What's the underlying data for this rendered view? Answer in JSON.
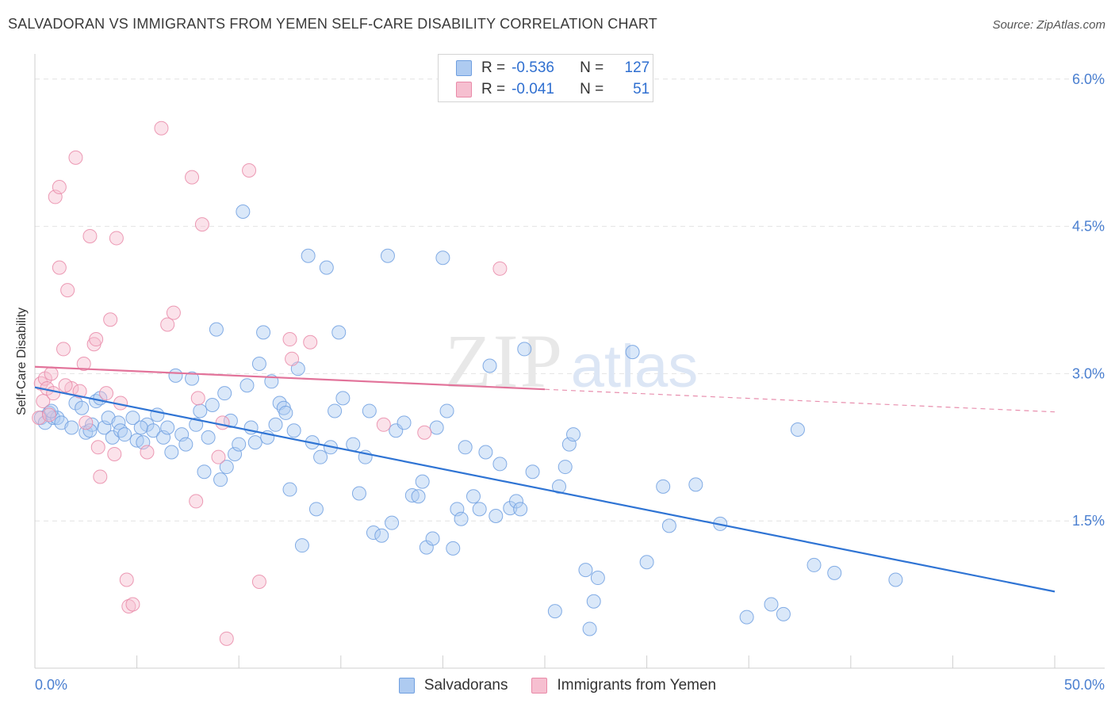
{
  "header": {
    "title": "SALVADORAN VS IMMIGRANTS FROM YEMEN SELF-CARE DISABILITY CORRELATION CHART",
    "source": "Source: ZipAtlas.com"
  },
  "watermark": {
    "zip": "ZIP",
    "atlas": "atlas"
  },
  "legend": {
    "rows": [
      {
        "r_label": "R =",
        "r_value": "-0.536",
        "n_label": "N =",
        "n_value": "127",
        "color": "#aecbf1",
        "border": "#6f9fe0"
      },
      {
        "r_label": "R =",
        "r_value": "-0.041",
        "n_label": "N =",
        "n_value": "51",
        "color": "#f6bfd0",
        "border": "#e98aa8"
      }
    ]
  },
  "chart_data": {
    "type": "scatter",
    "title": "SALVADORAN VS IMMIGRANTS FROM YEMEN SELF-CARE DISABILITY CORRELATION CHART",
    "xlabel": "",
    "ylabel": "Self-Care Disability",
    "xlim": [
      0,
      50
    ],
    "ylim": [
      0,
      6.2
    ],
    "x_tick_labels": [
      "0.0%",
      "50.0%"
    ],
    "y_ticks": [
      1.5,
      3.0,
      4.5,
      6.0
    ],
    "y_tick_labels": [
      "1.5%",
      "3.0%",
      "4.5%",
      "6.0%"
    ],
    "grid": true,
    "legend_position": "top-center",
    "series": [
      {
        "name": "Salvadorans",
        "color": "#6f9fe0",
        "fill": "#aecbf1",
        "trend": {
          "x": [
            0,
            50
          ],
          "y": [
            2.86,
            0.78
          ],
          "dashed_x": []
        },
        "points": [
          [
            0.3,
            2.55
          ],
          [
            0.5,
            2.5
          ],
          [
            0.7,
            2.6
          ],
          [
            0.9,
            2.55
          ],
          [
            1.1,
            2.55
          ],
          [
            1.3,
            2.5
          ],
          [
            1.8,
            2.45
          ],
          [
            2.0,
            2.7
          ],
          [
            2.3,
            2.65
          ],
          [
            2.5,
            2.4
          ],
          [
            2.8,
            2.48
          ],
          [
            3.0,
            2.72
          ],
          [
            3.2,
            2.75
          ],
          [
            3.4,
            2.45
          ],
          [
            3.6,
            2.55
          ],
          [
            3.8,
            2.35
          ],
          [
            4.1,
            2.5
          ],
          [
            4.2,
            2.42
          ],
          [
            4.4,
            2.38
          ],
          [
            4.8,
            2.55
          ],
          [
            5.0,
            2.32
          ],
          [
            5.3,
            2.3
          ],
          [
            5.5,
            2.48
          ],
          [
            5.8,
            2.42
          ],
          [
            6.0,
            2.58
          ],
          [
            6.3,
            2.35
          ],
          [
            6.5,
            2.45
          ],
          [
            6.7,
            2.2
          ],
          [
            6.9,
            2.98
          ],
          [
            7.2,
            2.38
          ],
          [
            7.4,
            2.28
          ],
          [
            7.7,
            2.95
          ],
          [
            7.9,
            2.48
          ],
          [
            8.1,
            2.62
          ],
          [
            8.3,
            2.0
          ],
          [
            8.5,
            2.35
          ],
          [
            8.7,
            2.68
          ],
          [
            8.9,
            3.45
          ],
          [
            9.1,
            1.92
          ],
          [
            9.3,
            2.8
          ],
          [
            9.6,
            2.52
          ],
          [
            9.8,
            2.18
          ],
          [
            10.0,
            2.28
          ],
          [
            10.2,
            4.65
          ],
          [
            10.4,
            2.88
          ],
          [
            10.6,
            2.45
          ],
          [
            10.8,
            2.3
          ],
          [
            11.0,
            3.1
          ],
          [
            11.2,
            3.42
          ],
          [
            11.4,
            2.35
          ],
          [
            11.6,
            2.92
          ],
          [
            11.8,
            2.48
          ],
          [
            12.0,
            2.7
          ],
          [
            12.2,
            2.65
          ],
          [
            12.5,
            1.82
          ],
          [
            12.7,
            2.42
          ],
          [
            12.9,
            3.05
          ],
          [
            13.1,
            1.25
          ],
          [
            13.4,
            4.2
          ],
          [
            13.6,
            2.3
          ],
          [
            13.8,
            1.62
          ],
          [
            14.0,
            2.15
          ],
          [
            14.3,
            4.08
          ],
          [
            14.5,
            2.25
          ],
          [
            14.7,
            2.62
          ],
          [
            14.9,
            3.42
          ],
          [
            15.1,
            2.75
          ],
          [
            15.6,
            2.28
          ],
          [
            15.9,
            1.78
          ],
          [
            16.2,
            2.15
          ],
          [
            16.4,
            2.62
          ],
          [
            16.6,
            1.38
          ],
          [
            17.0,
            1.35
          ],
          [
            17.3,
            4.2
          ],
          [
            17.5,
            1.48
          ],
          [
            17.7,
            2.42
          ],
          [
            18.1,
            2.5
          ],
          [
            18.5,
            1.76
          ],
          [
            18.8,
            1.75
          ],
          [
            19.0,
            1.9
          ],
          [
            19.2,
            1.23
          ],
          [
            19.5,
            1.32
          ],
          [
            19.7,
            2.45
          ],
          [
            20.0,
            4.18
          ],
          [
            20.2,
            2.62
          ],
          [
            20.5,
            1.22
          ],
          [
            20.7,
            1.62
          ],
          [
            20.9,
            1.52
          ],
          [
            21.1,
            2.25
          ],
          [
            21.5,
            1.75
          ],
          [
            21.8,
            1.62
          ],
          [
            22.1,
            2.2
          ],
          [
            22.3,
            3.08
          ],
          [
            22.6,
            1.55
          ],
          [
            22.8,
            2.08
          ],
          [
            23.3,
            1.63
          ],
          [
            23.6,
            1.7
          ],
          [
            23.8,
            1.62
          ],
          [
            24.0,
            3.25
          ],
          [
            24.4,
            2.0
          ],
          [
            25.5,
            0.58
          ],
          [
            25.7,
            1.85
          ],
          [
            26.0,
            2.05
          ],
          [
            26.2,
            2.28
          ],
          [
            26.4,
            2.38
          ],
          [
            27.0,
            1.0
          ],
          [
            27.2,
            0.4
          ],
          [
            27.4,
            0.68
          ],
          [
            27.6,
            0.92
          ],
          [
            29.3,
            3.22
          ],
          [
            30.0,
            1.08
          ],
          [
            30.8,
            1.85
          ],
          [
            31.1,
            1.45
          ],
          [
            32.4,
            1.87
          ],
          [
            33.6,
            1.47
          ],
          [
            34.9,
            0.52
          ],
          [
            36.1,
            0.65
          ],
          [
            36.7,
            0.55
          ],
          [
            37.4,
            2.43
          ],
          [
            38.2,
            1.05
          ],
          [
            39.2,
            0.97
          ],
          [
            42.2,
            0.9
          ],
          [
            0.8,
            2.62
          ],
          [
            2.7,
            2.42
          ],
          [
            5.2,
            2.45
          ],
          [
            9.4,
            2.05
          ],
          [
            12.3,
            2.6
          ]
        ]
      },
      {
        "name": "Immigrants from Yemen",
        "color": "#e98aa8",
        "fill": "#f6bfd0",
        "trend": {
          "x": [
            0,
            25
          ],
          "y": [
            3.07,
            2.84
          ],
          "dashed_x": [
            25,
            50
          ]
        },
        "points": [
          [
            0.2,
            2.55
          ],
          [
            0.3,
            2.9
          ],
          [
            0.4,
            2.72
          ],
          [
            0.5,
            2.95
          ],
          [
            0.6,
            2.85
          ],
          [
            0.8,
            3.0
          ],
          [
            0.9,
            2.8
          ],
          [
            1.0,
            4.8
          ],
          [
            1.2,
            4.08
          ],
          [
            1.2,
            4.9
          ],
          [
            1.4,
            3.25
          ],
          [
            1.6,
            3.85
          ],
          [
            1.8,
            2.85
          ],
          [
            2.0,
            5.2
          ],
          [
            2.2,
            2.82
          ],
          [
            2.4,
            3.1
          ],
          [
            2.5,
            2.5
          ],
          [
            2.7,
            4.4
          ],
          [
            2.9,
            3.3
          ],
          [
            3.0,
            3.35
          ],
          [
            3.1,
            2.25
          ],
          [
            3.2,
            1.95
          ],
          [
            3.5,
            2.8
          ],
          [
            3.7,
            3.55
          ],
          [
            4.0,
            4.38
          ],
          [
            4.2,
            2.7
          ],
          [
            4.5,
            0.9
          ],
          [
            4.6,
            0.63
          ],
          [
            4.8,
            0.65
          ],
          [
            5.5,
            2.2
          ],
          [
            6.2,
            5.5
          ],
          [
            6.5,
            3.5
          ],
          [
            6.8,
            3.62
          ],
          [
            7.7,
            5.0
          ],
          [
            7.9,
            1.7
          ],
          [
            8.0,
            2.75
          ],
          [
            8.2,
            4.52
          ],
          [
            9.0,
            2.15
          ],
          [
            9.2,
            2.5
          ],
          [
            9.4,
            0.3
          ],
          [
            10.5,
            5.07
          ],
          [
            11.0,
            0.88
          ],
          [
            12.5,
            3.35
          ],
          [
            12.6,
            3.15
          ],
          [
            13.5,
            3.32
          ],
          [
            17.1,
            2.48
          ],
          [
            19.1,
            2.4
          ],
          [
            22.8,
            4.07
          ],
          [
            1.5,
            2.88
          ],
          [
            0.7,
            2.58
          ],
          [
            3.9,
            2.18
          ]
        ]
      }
    ]
  }
}
